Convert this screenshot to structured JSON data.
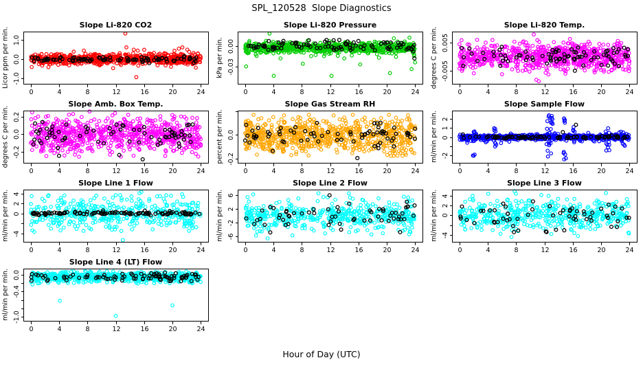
{
  "page": {
    "title": "SPL_120528  Slope Diagnostics",
    "xlabel": "Hour of Day (UTC)",
    "background": "#ffffff",
    "series_colors": {
      "co2": "#ff0000",
      "pressure": "#00cc00",
      "temp": "#ff00ff",
      "rh": "#ffa500",
      "sample_flow": "#0000ff",
      "line_flow": "#00ffff",
      "overlay": "#000000"
    }
  },
  "chart_data": [
    {
      "type": "scatter",
      "title": "Slope Li-820 CO2",
      "ylabel": "Licor ppm per min.",
      "color": "#ff0000",
      "overlay_color": "#000000",
      "seed": 11,
      "xlim": [
        -1.04,
        25.04
      ],
      "ylim": [
        -1.3,
        1.45
      ],
      "xticks": [
        0,
        4,
        8,
        12,
        16,
        20,
        24
      ],
      "yticks": [
        {
          "v": 1.0,
          "label": "1.0"
        },
        {
          "v": 0.0,
          "label": "0.0"
        },
        {
          "v": -1.0,
          "label": "-1.0"
        }
      ],
      "main": {
        "n": 720,
        "center": 0,
        "sd": 0.13,
        "frac2": 0.08,
        "sd2": 0.25,
        "clip": [
          -0.5,
          0.55
        ]
      },
      "outliers": [
        [
          13.35,
          1.35
        ],
        [
          13.5,
          0.62
        ],
        [
          14.55,
          0.5
        ],
        [
          14.9,
          -0.95
        ],
        [
          15.1,
          0.45
        ],
        [
          20.9,
          0.55
        ],
        [
          21.4,
          0.62
        ],
        [
          22.1,
          0.5
        ],
        [
          23.3,
          -0.45
        ],
        [
          2.5,
          -0.42
        ],
        [
          7.5,
          0.45
        ],
        [
          19.8,
          -0.4
        ]
      ],
      "overlay": {
        "n": 95,
        "center": -0.02,
        "sd": 0.07,
        "clip": [
          -0.25,
          0.3
        ]
      },
      "overlay_outliers": []
    },
    {
      "type": "scatter",
      "title": "Slope Li-820 Pressure",
      "ylabel": "kPa per min.",
      "color": "#00cc00",
      "overlay_color": "#000000",
      "seed": 22,
      "xlim": [
        -1.04,
        25.04
      ],
      "ylim": [
        -0.056,
        0.022
      ],
      "xticks": [
        0,
        4,
        8,
        12,
        16,
        20,
        24
      ],
      "yticks": [
        {
          "v": 0.0,
          "label": "0.00"
        },
        {
          "v": -0.03,
          "label": "-0.03"
        }
      ],
      "main": {
        "n": 720,
        "center": -0.002,
        "sd": 0.0035,
        "frac2": 0.1,
        "sd2": 0.007,
        "clip": [
          -0.016,
          0.009
        ]
      },
      "outliers": [
        [
          0.15,
          -0.03
        ],
        [
          3.45,
          0.019
        ],
        [
          4.05,
          -0.044
        ],
        [
          5.0,
          -0.018
        ],
        [
          8.15,
          -0.026
        ],
        [
          12.2,
          -0.044
        ],
        [
          14.0,
          -0.018
        ],
        [
          16.25,
          -0.027
        ],
        [
          18.9,
          -0.017
        ],
        [
          20.45,
          -0.04
        ],
        [
          21.0,
          0.012
        ],
        [
          23.2,
          0.013
        ],
        [
          23.5,
          -0.034
        ],
        [
          24.0,
          -0.024
        ]
      ],
      "overlay": {
        "n": 90,
        "center": 0.0005,
        "sd": 0.0035,
        "clip": [
          -0.01,
          0.009
        ]
      },
      "overlay_outliers": [
        [
          23.9,
          -0.018
        ],
        [
          9.0,
          0.009
        ],
        [
          11.5,
          0.0095
        ],
        [
          12.5,
          0.009
        ],
        [
          13.3,
          0.0095
        ],
        [
          16.0,
          0.008
        ]
      ]
    },
    {
      "type": "scatter",
      "title": "Slope Li-820 Temp.",
      "ylabel": "degrees C per min.",
      "color": "#ff00ff",
      "overlay_color": "#000000",
      "seed": 33,
      "xlim": [
        -1.04,
        25.04
      ],
      "ylim": [
        -0.0095,
        0.0088
      ],
      "xticks": [
        0,
        4,
        8,
        12,
        16,
        20,
        24
      ],
      "yticks": [
        {
          "v": 0.005,
          "label": "0.005"
        },
        {
          "v": -0.005,
          "label": "-0.005"
        }
      ],
      "main": {
        "n": 720,
        "center": 0,
        "sd": 0.0022,
        "frac2": 0.1,
        "sd2": 0.004,
        "clip": [
          -0.0063,
          0.0063
        ]
      },
      "outliers": [
        [
          10.5,
          0.0078
        ],
        [
          10.85,
          -0.0081
        ],
        [
          11.2,
          -0.0086
        ],
        [
          0.3,
          0.0058
        ],
        [
          15.6,
          0.0062
        ],
        [
          11.0,
          0.0058
        ]
      ],
      "overlay": {
        "n": 85,
        "center": 0,
        "sd": 0.0018,
        "clip": [
          -0.005,
          0.005
        ]
      },
      "overlay_outliers": []
    },
    {
      "type": "scatter",
      "title": "Slope Amb. Box Temp.",
      "ylabel": "degrees C per min.",
      "color": "#ff00ff",
      "overlay_color": "#000000",
      "seed": 44,
      "xlim": [
        -1.04,
        25.04
      ],
      "ylim": [
        -0.33,
        0.27
      ],
      "xticks": [
        0,
        4,
        8,
        12,
        16,
        20,
        24
      ],
      "yticks": [
        {
          "v": 0.2,
          "label": "0.2"
        },
        {
          "v": 0.0,
          "label": "0.0"
        },
        {
          "v": -0.2,
          "label": "-0.2"
        }
      ],
      "main": {
        "n": 720,
        "center": -0.01,
        "sd": 0.095,
        "frac2": 0.15,
        "sd2": 0.16,
        "clip": [
          -0.27,
          0.24
        ]
      },
      "outliers": [
        [
          8.3,
          0.26
        ],
        [
          11.9,
          0.24
        ],
        [
          0.2,
          0.25
        ]
      ],
      "overlay": {
        "n": 70,
        "center": 0,
        "sd": 0.08,
        "clip": [
          -0.22,
          0.18
        ]
      },
      "overlay_outliers": [
        [
          15.8,
          -0.29
        ],
        [
          4.0,
          -0.25
        ],
        [
          12.5,
          -0.24
        ]
      ]
    },
    {
      "type": "scatter",
      "title": "Slope Gas Stream RH",
      "ylabel": "percent per min.",
      "color": "#ffa500",
      "overlay_color": "#000000",
      "seed": 55,
      "xlim": [
        -1.04,
        25.04
      ],
      "ylim": [
        -0.235,
        0.205
      ],
      "xticks": [
        0,
        4,
        8,
        12,
        16,
        20,
        24
      ],
      "yticks": [
        {
          "v": 0.2,
          "label": ""
        },
        {
          "v": 0.0,
          "label": "0.0"
        },
        {
          "v": -0.2,
          "label": "-0.2"
        }
      ],
      "main": {
        "n": 720,
        "center": -0.01,
        "sd": 0.07,
        "frac2": 0.12,
        "sd2": 0.11,
        "clip": [
          -0.18,
          0.155
        ]
      },
      "outliers": [
        [
          1.2,
          0.17
        ],
        [
          5.5,
          0.165
        ],
        [
          9.0,
          0.17
        ],
        [
          12.5,
          0.165
        ],
        [
          15.2,
          0.17
        ],
        [
          23.0,
          0.165
        ],
        [
          20.3,
          0.17
        ],
        [
          21.5,
          -0.175
        ]
      ],
      "overlay": {
        "n": 72,
        "center": -0.01,
        "sd": 0.055,
        "clip": [
          -0.15,
          0.12
        ]
      },
      "overlay_outliers": [
        [
          15.85,
          -0.195
        ],
        [
          3.9,
          -0.135
        ]
      ]
    },
    {
      "type": "scatter",
      "title": "Slope Sample Flow",
      "ylabel": "ml/min per min.",
      "color": "#0000ff",
      "overlay_color": "#000000",
      "seed": 66,
      "xlim": [
        -1.04,
        25.04
      ],
      "ylim": [
        -2.8,
        2.9
      ],
      "xticks": [
        0,
        4,
        8,
        12,
        16,
        20,
        24
      ],
      "yticks": [
        {
          "v": 2,
          "label": "2"
        },
        {
          "v": 1,
          "label": "1"
        },
        {
          "v": 0,
          "label": "0"
        },
        {
          "v": -1,
          "label": ""
        },
        {
          "v": -2,
          "label": "-2"
        }
      ],
      "main": {
        "n": 720,
        "center": 0,
        "sd": 0.12,
        "frac2": 0.12,
        "sd2": 0.3,
        "clip": [
          -0.75,
          0.75
        ]
      },
      "spikes": [
        {
          "x": 2.05,
          "xsd": 0.15,
          "n": 10,
          "ymin": -2.1,
          "ymax": 0.9
        },
        {
          "x": 2.4,
          "xsd": 0.1,
          "n": 4,
          "ymin": -0.9,
          "ymax": 1.25
        },
        {
          "x": 5.05,
          "xsd": 0.2,
          "n": 9,
          "ymin": -1.5,
          "ymax": 1.25
        },
        {
          "x": 12.75,
          "xsd": 0.45,
          "n": 26,
          "ymin": -2.25,
          "ymax": 2.8
        },
        {
          "x": 14.95,
          "xsd": 0.25,
          "n": 12,
          "ymin": -2.6,
          "ymax": 2.35
        },
        {
          "x": 16.15,
          "xsd": 0.15,
          "n": 6,
          "ymin": -0.8,
          "ymax": 1.3
        },
        {
          "x": 20.9,
          "xsd": 0.3,
          "n": 10,
          "ymin": -1.7,
          "ymax": 1.15
        },
        {
          "x": 23.2,
          "xsd": 0.15,
          "n": 5,
          "ymin": -1.0,
          "ymax": 0.8
        }
      ],
      "outliers": [],
      "overlay": {
        "n": 90,
        "center": 0,
        "sd": 0.07,
        "clip": [
          -0.3,
          0.3
        ]
      },
      "overlay_outliers": [
        [
          16.45,
          1.35
        ],
        [
          14.6,
          0.55
        ],
        [
          0.5,
          0.3
        ]
      ]
    },
    {
      "type": "scatter",
      "title": "Slope Line 1 Flow",
      "ylabel": "ml/min per min.",
      "color": "#00ffff",
      "overlay_color": "#000000",
      "seed": 77,
      "xlim": [
        -1.04,
        25.04
      ],
      "ylim": [
        -5.7,
        4.8
      ],
      "xticks": [
        0,
        4,
        8,
        12,
        16,
        20,
        24
      ],
      "yticks": [
        {
          "v": 4,
          "label": "4"
        },
        {
          "v": 2,
          "label": "2"
        },
        {
          "v": 0,
          "label": "0"
        },
        {
          "v": -2,
          "label": ""
        },
        {
          "v": -4,
          "label": "-4"
        }
      ],
      "main": {
        "n": 430,
        "center": 0,
        "sd": 1.4,
        "frac2": 0.35,
        "sd2": 2.4,
        "clip": [
          -4.9,
          4.35
        ]
      },
      "outliers": [
        [
          13.0,
          -5.35
        ]
      ],
      "overlay": {
        "n": 115,
        "center": 0,
        "sd": 0.14,
        "clip": [
          -0.6,
          0.6
        ]
      },
      "overlay_outliers": [
        [
          6.3,
          0.35
        ],
        [
          7.9,
          -0.15
        ],
        [
          10.2,
          0.6
        ],
        [
          16.1,
          0.55
        ],
        [
          19.6,
          0.45
        ]
      ]
    },
    {
      "type": "scatter",
      "title": "Slope Line 2 Flow",
      "ylabel": "ml/min per min.",
      "color": "#00ffff",
      "overlay_color": "#000000",
      "seed": 88,
      "xlim": [
        -1.04,
        25.04
      ],
      "ylim": [
        -7.7,
        7.5
      ],
      "xticks": [
        0,
        4,
        8,
        12,
        16,
        20,
        24
      ],
      "yticks": [
        {
          "v": 6,
          "label": "6"
        },
        {
          "v": 2,
          "label": "2"
        },
        {
          "v": -2,
          "label": "-2"
        },
        {
          "v": -6,
          "label": "-6"
        }
      ],
      "main": {
        "n": 480,
        "center": 0,
        "sd": 1.1,
        "frac2": 0.45,
        "sd2": 3.2,
        "clip": [
          -6.9,
          6.9
        ]
      },
      "outliers": [],
      "overlay": {
        "n": 62,
        "center": 0,
        "sd": 1.9,
        "clip": [
          -6.6,
          6.2
        ]
      },
      "overlay_outliers": []
    },
    {
      "type": "scatter",
      "title": "Slope Line 3 Flow",
      "ylabel": "ml/min per min.",
      "color": "#00ffff",
      "overlay_color": "#000000",
      "seed": 99,
      "xlim": [
        -1.04,
        25.04
      ],
      "ylim": [
        -5.4,
        5.2
      ],
      "xticks": [
        0,
        4,
        8,
        12,
        16,
        20,
        24
      ],
      "yticks": [
        {
          "v": 4,
          "label": "4"
        },
        {
          "v": 2,
          "label": "2"
        },
        {
          "v": 0,
          "label": "0"
        },
        {
          "v": -2,
          "label": ""
        },
        {
          "v": -4,
          "label": "-4"
        }
      ],
      "main": {
        "n": 480,
        "center": 0,
        "sd": 1.2,
        "frac2": 0.4,
        "sd2": 2.2,
        "clip": [
          -4.6,
          4.9
        ]
      },
      "outliers": [],
      "overlay": {
        "n": 58,
        "center": 0,
        "sd": 1.6,
        "clip": [
          -3.6,
          2.9
        ]
      },
      "overlay_outliers": [
        [
          12.2,
          -3.3
        ],
        [
          12.3,
          -3.4
        ]
      ]
    },
    {
      "type": "scatter",
      "title": "Slope Line 4 (LT) Flow",
      "ylabel": "ml/min per min.",
      "color": "#00ffff",
      "overlay_color": "#000000",
      "seed": 110,
      "xlim": [
        -1.04,
        25.04
      ],
      "ylim": [
        -1.1,
        0.15
      ],
      "xticks": [
        0,
        4,
        8,
        12,
        16,
        20,
        24
      ],
      "yticks": [
        {
          "v": 0.0,
          "label": "0.0"
        },
        {
          "v": -0.2,
          "label": ""
        },
        {
          "v": -0.4,
          "label": "-0.4"
        },
        {
          "v": -0.6,
          "label": ""
        },
        {
          "v": -0.8,
          "label": ""
        },
        {
          "v": -1.0,
          "label": "-1.0"
        }
      ],
      "main": {
        "n": 700,
        "center": -0.05,
        "sd": 0.055,
        "frac2": 0.1,
        "sd2": 0.09,
        "clip": [
          -0.24,
          0.09
        ]
      },
      "outliers": [
        [
          0.25,
          -0.23
        ],
        [
          4.1,
          -0.62
        ],
        [
          12.0,
          -0.98
        ],
        [
          20.0,
          -0.73
        ],
        [
          16.3,
          -0.2
        ]
      ],
      "overlay": {
        "n": 90,
        "center": -0.05,
        "sd": 0.05,
        "clip": [
          -0.2,
          0.06
        ]
      },
      "overlay_outliers": []
    }
  ]
}
